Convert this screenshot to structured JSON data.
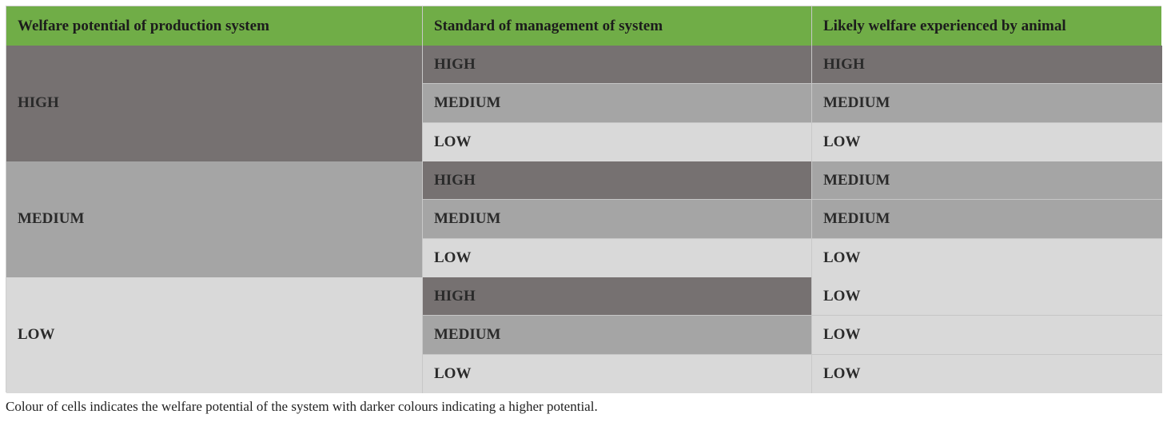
{
  "table": {
    "headers": [
      "Welfare potential of production system",
      "Standard of management of system",
      "Likely welfare experienced by animal"
    ],
    "groups": [
      {
        "potential": "HIGH",
        "rows": [
          {
            "management": "HIGH",
            "welfare": "HIGH"
          },
          {
            "management": "MEDIUM",
            "welfare": "MEDIUM"
          },
          {
            "management": "LOW",
            "welfare": "LOW"
          }
        ]
      },
      {
        "potential": "MEDIUM",
        "rows": [
          {
            "management": "HIGH",
            "welfare": "MEDIUM"
          },
          {
            "management": "MEDIUM",
            "welfare": "MEDIUM"
          },
          {
            "management": "LOW",
            "welfare": "LOW"
          }
        ]
      },
      {
        "potential": "LOW",
        "rows": [
          {
            "management": "HIGH",
            "welfare": "LOW"
          },
          {
            "management": "MEDIUM",
            "welfare": "LOW"
          },
          {
            "management": "LOW",
            "welfare": "LOW"
          }
        ]
      }
    ]
  },
  "colors": {
    "header": "#70ad47",
    "HIGH": "#767171",
    "MEDIUM": "#a5a5a5",
    "LOW": "#d9d9d9"
  },
  "footnote": "Colour of cells indicates the welfare potential of the system with darker colours indicating a higher potential."
}
